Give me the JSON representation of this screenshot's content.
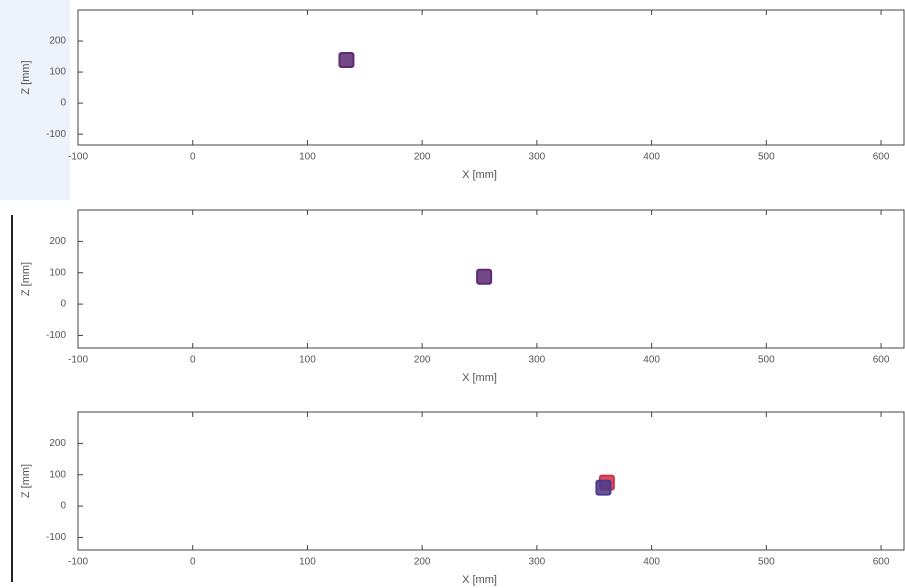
{
  "chart_data": [
    {
      "type": "scatter",
      "xlabel": "X [mm]",
      "ylabel": "Z [mm]",
      "xlim": [
        -100,
        620
      ],
      "ylim": [
        -135,
        300
      ],
      "xticks": [
        -100,
        0,
        100,
        200,
        300,
        400,
        500,
        600
      ],
      "yticks": [
        -100,
        0,
        100,
        200
      ],
      "series": [
        {
          "color": "#5b2a72",
          "x": [
            134
          ],
          "values": [
            139
          ]
        }
      ]
    },
    {
      "type": "scatter",
      "xlabel": "X [mm]",
      "ylabel": "Z [mm]",
      "xlim": [
        -100,
        620
      ],
      "ylim": [
        -140,
        300
      ],
      "xticks": [
        -100,
        0,
        100,
        200,
        300,
        400,
        500,
        600
      ],
      "yticks": [
        -100,
        0,
        100,
        200
      ],
      "series": [
        {
          "color": "#5b2a72",
          "x": [
            254
          ],
          "values": [
            87
          ]
        }
      ]
    },
    {
      "type": "scatter",
      "xlabel": "X [mm]",
      "ylabel": "Z [mm]",
      "xlim": [
        -100,
        620
      ],
      "ylim": [
        -140,
        300
      ],
      "xticks": [
        -100,
        0,
        100,
        200,
        300,
        400,
        500,
        600
      ],
      "yticks": [
        -100,
        0,
        100,
        200
      ],
      "series": [
        {
          "color": "#d0304a",
          "x": [
            361
          ],
          "values": [
            75
          ]
        },
        {
          "color": "#4a3a8a",
          "x": [
            358
          ],
          "values": [
            59
          ]
        }
      ]
    }
  ]
}
